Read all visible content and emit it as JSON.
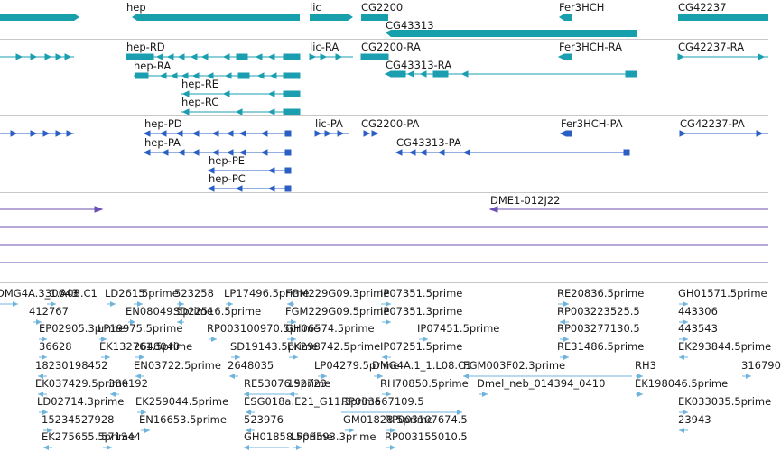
{
  "colors": {
    "gene": "#17a0ab",
    "transcript": "#1b9fb0",
    "protein": "#2b5fc4",
    "clone": "#6e4fb3",
    "est": "#6fb4dc",
    "divider": "#c8c8c8"
  },
  "genes": [
    {
      "label": "hep",
      "name": "gene-hep"
    },
    {
      "label": "lic",
      "name": "gene-lic"
    },
    {
      "label": "CG2200",
      "name": "gene-cg2200"
    },
    {
      "label": "CG43313",
      "name": "gene-cg43313"
    },
    {
      "label": "Fer3HCH",
      "name": "gene-fer3hch"
    },
    {
      "label": "CG42237",
      "name": "gene-cg42237"
    }
  ],
  "transcripts": [
    {
      "label": "hep-RD",
      "name": "transcript-hep-rd"
    },
    {
      "label": "hep-RA",
      "name": "transcript-hep-ra"
    },
    {
      "label": "hep-RE",
      "name": "transcript-hep-re"
    },
    {
      "label": "hep-RC",
      "name": "transcript-hep-rc"
    },
    {
      "label": "lic-RA",
      "name": "transcript-lic-ra"
    },
    {
      "label": "CG2200-RA",
      "name": "transcript-cg2200-ra"
    },
    {
      "label": "CG43313-RA",
      "name": "transcript-cg43313-ra"
    },
    {
      "label": "Fer3HCH-RA",
      "name": "transcript-fer3hch-ra"
    },
    {
      "label": "CG42237-RA",
      "name": "transcript-cg42237-ra"
    }
  ],
  "proteins": [
    {
      "label": "hep-PD",
      "name": "protein-hep-pd"
    },
    {
      "label": "hep-PA",
      "name": "protein-hep-pa"
    },
    {
      "label": "hep-PE",
      "name": "protein-hep-pe"
    },
    {
      "label": "hep-PC",
      "name": "protein-hep-pc"
    },
    {
      "label": "lic-PA",
      "name": "protein-lic-pa"
    },
    {
      "label": "CG2200-PA",
      "name": "protein-cg2200-pa"
    },
    {
      "label": "CG43313-PA",
      "name": "protein-cg43313-pa"
    },
    {
      "label": "Fer3HCH-PA",
      "name": "protein-fer3hch-pa"
    },
    {
      "label": "CG42237-PA",
      "name": "protein-cg42237-pa"
    }
  ],
  "clones": [
    {
      "label": "DME1-012J22",
      "name": "clone-dme1-012j22"
    }
  ],
  "ests": [
    "DMG4A.3_1.A08.C1",
    "30643",
    "LD2615",
    "1.5prime",
    "523258",
    "LP17496.5prime",
    "FGM229G09.3prime",
    "IP07351.5prime",
    "RE20836.5prime",
    "GH01571.5prime",
    "412767",
    "EN08049.5prime",
    "SD22516.5prime",
    "FGM229G09.5prime",
    "IP07351.3prime",
    "RP003223525.5",
    "443306",
    "EP02905.3prime",
    "LP19975.5prime",
    "RP003100970.5prime",
    "GH06574.5prime",
    "IP07451.5prime",
    "RP003277130.5",
    "443543",
    "36628",
    "EK132761.5prime",
    "2648040",
    "SD19143.5prime",
    "EK298742.5prime",
    "IP07251.5prime",
    "RE31486.5prime",
    "EK293844.5prime",
    "18230198452",
    "EN03722.5prime",
    "2648035",
    "LP04279.5prime",
    "DMG4A.1_1.L08.C1",
    "FGM003F02.3prime",
    "RH3",
    "316790",
    "EK037429.5prime",
    "380192",
    "RE53076.5prime",
    "192723",
    "RH70850.5prime",
    "Dmel_neb_014394_0410",
    "EK198046.5prime",
    "LD02714.3prime",
    "EK259044.5prime",
    "ESG018a.E21_G11.3prime",
    "RP003567109.5",
    "EK033035.5prime",
    "15234527928",
    "EN16653.5prime",
    "523976",
    "GM01828.5prime",
    "RP003107674.5",
    "23943",
    "EK275655.5prime",
    "571344",
    "GH01858.5prime",
    "LP08593.3prime",
    "RP003155010.5"
  ]
}
